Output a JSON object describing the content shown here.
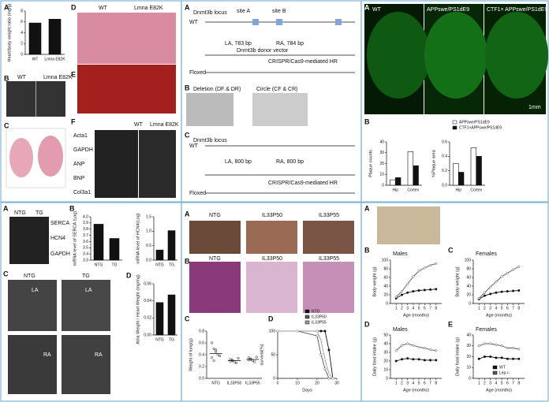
{
  "panels": [
    {
      "texts": [
        "A",
        "B",
        "C",
        "D",
        "E",
        "F",
        "WT",
        "Lmna E82K",
        "WT",
        "Lmna E82K",
        "WT",
        "Lmna E82K",
        "Acta1",
        "GAPDH",
        "ANP",
        "BNP",
        "Col3a1"
      ]
    },
    {
      "texts": [
        "A",
        "B",
        "C",
        "Dnmt3b locus",
        "WT",
        "site A",
        "site B",
        "LA, 783 bp",
        "RA, 784 bp",
        "Dnmt3b donor vector",
        "CRISPR/Cas9-mediated HR",
        "Floxed",
        "Deletion (DF & DR)",
        "Circle (CF & CR)",
        "LA, 800 bp",
        "RA, 800 bp"
      ]
    },
    {
      "texts": [
        "A",
        "B",
        "WT",
        "APPswe/PS1dE9",
        "CTF1× APPswe/PS1dE9",
        "1mm"
      ]
    },
    {
      "texts": [
        "A",
        "B",
        "C",
        "D",
        "NTG",
        "TG",
        "LA",
        "RA",
        "SERCA",
        "HCN4",
        "GAPDH"
      ]
    },
    {
      "texts": [
        "A",
        "B",
        "C",
        "D",
        "NTG",
        "IL33P50",
        "IL33P55"
      ]
    },
    {
      "texts": [
        "A",
        "B",
        "C",
        "D",
        "E",
        "Males",
        "Females"
      ]
    }
  ],
  "charts": [
    {
      "type": "bar",
      "ylabel": "Heart/body weight ratio (mg/g)",
      "categories": [
        "WT",
        "Lmna E82K"
      ],
      "series": [
        {
          "color": "#111111",
          "values": [
            5.8,
            6.5
          ]
        }
      ],
      "ylim": [
        0,
        8
      ],
      "yticks": [
        0,
        2,
        4,
        6,
        8
      ]
    },
    {
      "type": "bar",
      "ylabel": "mRNA level of SERCA (Log)",
      "categories": [
        "NTG",
        "TG"
      ],
      "series": [
        {
          "color": "#111111",
          "values": [
            3.88,
            3.65
          ]
        }
      ],
      "ylim": [
        3.3,
        4
      ],
      "yticks": [
        3.3,
        3.4,
        3.5,
        3.6,
        3.7,
        3.8,
        3.9,
        {
          "value": 4,
          "label": "4.0"
        }
      ]
    },
    {
      "type": "bar",
      "ylabel": "mRNA level of HCN4(Log)",
      "categories": [
        "NTG",
        "TG"
      ],
      "series": [
        {
          "color": "#111111",
          "values": [
            0.35,
            1.02
          ]
        }
      ],
      "ylim": [
        0,
        1.5
      ],
      "yticks": [
        {
          "value": 0,
          "label": "0.0"
        },
        0.5,
        {
          "value": 1,
          "label": "1.0"
        },
        1.5
      ]
    },
    {
      "type": "bar",
      "ylabel": "Atria Weight / Heart Weight (mg/mg)",
      "categories": [
        "NTG",
        "TG"
      ],
      "series": [
        {
          "color": "#111111",
          "values": [
            0.038,
            0.047
          ]
        }
      ],
      "ylim": [
        0,
        0.06
      ],
      "yticks": [
        {
          "value": 0,
          "label": "0.00"
        },
        0.02,
        0.04,
        0.06
      ]
    },
    {
      "type": "bar",
      "ylabel": "Plaque counts",
      "categories": [
        "Hip",
        "Cortex"
      ],
      "series": [
        {
          "name": "APPswe/PS1dE9",
          "color": "#ffffff",
          "values": [
            5,
            31
          ]
        },
        {
          "name": "CTF1×APPswe/PS1dE9",
          "color": "#111111",
          "values": [
            7,
            18
          ]
        }
      ],
      "ylim": [
        0,
        40
      ],
      "yticks": [
        0,
        10,
        20,
        30,
        40
      ]
    },
    {
      "type": "bar",
      "ylabel": "%Plaque area",
      "categories": [
        "Hip",
        "Cortex"
      ],
      "series": [
        {
          "name": "APPswe/PS1dE9",
          "color": "#ffffff",
          "values": [
            0.3,
            0.52
          ]
        },
        {
          "name": "CTF1×APPswe/PS1dE9",
          "color": "#111111",
          "values": [
            0.18,
            0.4
          ]
        }
      ],
      "ylim": [
        0,
        0.6
      ],
      "yticks": [
        {
          "value": 0,
          "label": "0.0"
        },
        0.2,
        0.4,
        0.6
      ],
      "legend": "upper left"
    },
    {
      "type": "dot",
      "ylabel": "Weight of lung(g)",
      "categories": [
        "NTG",
        "IL33P50",
        "IL33P55"
      ],
      "series": [
        {
          "color": "#111111",
          "values": [
            0.42,
            0.3,
            0.32
          ]
        }
      ],
      "points": [
        [
          0.6,
          0.5,
          0.45,
          0.4,
          0.38,
          0.35,
          0.3,
          0.48
        ],
        [
          0.32,
          0.3,
          0.28,
          0.26,
          0.34,
          0.29,
          0.31
        ],
        [
          0.35,
          0.33,
          0.3,
          0.28,
          0.36,
          0.31,
          0.32
        ]
      ],
      "ylim": [
        0,
        0.8
      ],
      "yticks": [
        {
          "value": 0,
          "label": "0.0"
        },
        0.2,
        0.4,
        0.6,
        0.8
      ]
    },
    {
      "type": "line",
      "ylabel": "survival(%)",
      "xlabel": "Days",
      "x": [
        0,
        10,
        20,
        22,
        24,
        26,
        28
      ],
      "series": [
        {
          "name": "NTG",
          "color": "#111111",
          "values": [
            100,
            100,
            100,
            100,
            100,
            60,
            0
          ]
        },
        {
          "name": "IL33P50",
          "color": "#555555",
          "values": [
            100,
            100,
            90,
            50,
            20,
            0,
            0
          ]
        },
        {
          "name": "IL33P55",
          "color": "#999999",
          "values": [
            100,
            100,
            100,
            80,
            40,
            10,
            0
          ]
        }
      ],
      "xlim": [
        0,
        30
      ],
      "xticks": [
        0,
        10,
        20,
        30
      ],
      "ylim": [
        0,
        100
      ],
      "yticks": [
        0,
        50,
        100
      ],
      "legend": "upper right"
    },
    {
      "type": "line",
      "ylabel": "Body weight (g)",
      "xlabel": "Age (months)",
      "x": [
        1,
        2,
        3,
        4,
        5,
        6,
        7,
        8
      ],
      "series": [
        {
          "name": "WT",
          "color": "#111111",
          "values": [
            12,
            20,
            25,
            28,
            30,
            31,
            32,
            33
          ]
        },
        {
          "name": "Lep-/-",
          "color": "#555555",
          "values": [
            15,
            28,
            45,
            62,
            75,
            82,
            88,
            92
          ]
        }
      ],
      "xlim": [
        0,
        9
      ],
      "xticks": [
        1,
        2,
        3,
        4,
        5,
        6,
        7,
        8
      ],
      "ylim": [
        0,
        100
      ],
      "yticks": [
        0,
        20,
        40,
        60,
        80,
        100
      ]
    },
    {
      "type": "line",
      "ylabel": "Body weight (g)",
      "xlabel": "Age (months)",
      "x": [
        1,
        2,
        3,
        4,
        5,
        6,
        7,
        8
      ],
      "series": [
        {
          "name": "WT",
          "color": "#111111",
          "values": [
            10,
            18,
            22,
            25,
            27,
            28,
            29,
            30
          ]
        },
        {
          "name": "Lep-/-",
          "color": "#555555",
          "values": [
            12,
            25,
            38,
            50,
            62,
            70,
            78,
            85
          ]
        }
      ],
      "xlim": [
        0,
        9
      ],
      "xticks": [
        1,
        2,
        3,
        4,
        5,
        6,
        7,
        8
      ],
      "ylim": [
        0,
        100
      ],
      "yticks": [
        0,
        20,
        40,
        60,
        80,
        100
      ]
    },
    {
      "type": "line",
      "ylabel": "Daily food intake (g)",
      "xlabel": "Age (months)",
      "x": [
        1,
        2,
        3,
        4,
        5,
        6,
        7,
        8
      ],
      "series": [
        {
          "name": "WT",
          "color": "#111111",
          "values": [
            20,
            22,
            23,
            22,
            22,
            21,
            21,
            21
          ]
        },
        {
          "name": "Lep-/-",
          "color": "#555555",
          "values": [
            32,
            38,
            40,
            38,
            36,
            35,
            33,
            32
          ]
        }
      ],
      "xlim": [
        0,
        9
      ],
      "xticks": [
        1,
        2,
        3,
        4,
        5,
        6,
        7,
        8
      ],
      "ylim": [
        0,
        50
      ],
      "yticks": [
        0,
        10,
        20,
        30,
        40,
        50
      ]
    },
    {
      "type": "line",
      "ylabel": "Daily food intake (g)",
      "xlabel": "Age (months)",
      "x": [
        1,
        2,
        3,
        4,
        5,
        6,
        7,
        8
      ],
      "series": [
        {
          "name": "WT",
          "color": "#111111",
          "values": [
            18,
            20,
            20,
            19,
            19,
            18,
            18,
            18
          ]
        },
        {
          "name": "Lep-/-",
          "color": "#555555",
          "values": [
            30,
            32,
            32,
            31,
            30,
            28,
            28,
            27
          ]
        }
      ],
      "xlim": [
        0,
        9
      ],
      "xticks": [
        1,
        2,
        3,
        4,
        5,
        6,
        7,
        8
      ],
      "ylim": [
        0,
        40
      ],
      "yticks": [
        0,
        10,
        20,
        30,
        40
      ],
      "legend": "lower right"
    }
  ]
}
